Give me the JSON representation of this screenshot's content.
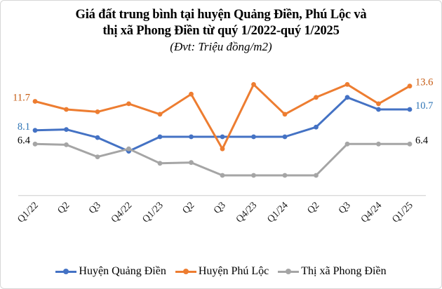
{
  "header": {
    "title_line1": "Giá đất trung bình tại huyện Quảng Điền, Phú Lộc và",
    "title_line2": "thị xã Phong Điền từ quý 1/2022-quý 1/2025",
    "subtitle": "(Đvt: Triệu đồng/m2)"
  },
  "chart_data": {
    "type": "line",
    "unit": "Triệu đồng/m2",
    "categories": [
      "Q1/22",
      "Q2",
      "Q3",
      "Q4/22",
      "Q1/23",
      "Q2",
      "Q3",
      "Q4/23",
      "Q1/24",
      "Q2",
      "Q3",
      "Q4/24",
      "Q1/25"
    ],
    "series": [
      {
        "name": "Huyện Quảng Điền",
        "color": "#4472C4",
        "label_color": "#2E74B5",
        "marker": "circle",
        "first_label": "8.1",
        "last_label": "10.7",
        "values": [
          8.1,
          8.2,
          7.2,
          5.5,
          7.3,
          7.3,
          7.3,
          7.3,
          7.3,
          8.5,
          12.2,
          10.7,
          10.7
        ]
      },
      {
        "name": "Huyện Phú Lộc",
        "color": "#ED7D31",
        "label_color": "#C55A11",
        "marker": "circle",
        "first_label": "11.7",
        "last_label": "13.6",
        "values": [
          11.7,
          10.7,
          10.4,
          11.4,
          10.1,
          12.6,
          5.8,
          13.8,
          10.1,
          12.2,
          13.8,
          11.4,
          13.6
        ]
      },
      {
        "name": "Thị xã Phong Điền",
        "color": "#A5A5A5",
        "label_color": "#000000",
        "marker": "circle",
        "first_label": "6.4",
        "last_label": "6.4",
        "values": [
          6.4,
          6.3,
          4.8,
          5.8,
          4.0,
          4.1,
          2.5,
          2.5,
          2.5,
          2.5,
          6.4,
          6.4,
          6.4
        ]
      }
    ],
    "ylim": [
      0,
      15
    ],
    "grid": "off",
    "y_axis_visible": false,
    "legend_position": "bottom",
    "axis_line_color": "#D9D9D9",
    "tick_label_color": "#1A1A1A"
  }
}
